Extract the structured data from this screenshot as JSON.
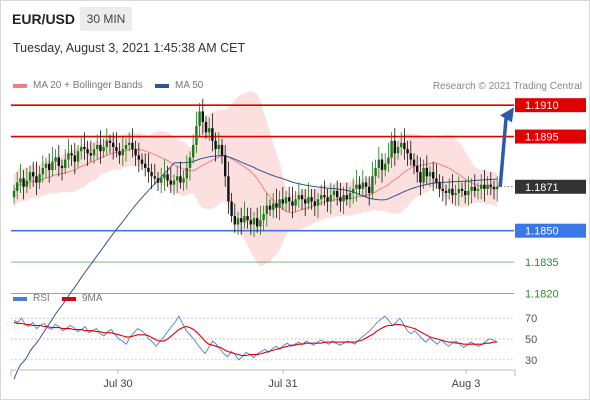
{
  "header": {
    "symbol": "EUR/USD",
    "timeframe": "30 MIN",
    "datetime": "Tuesday, August 3, 2021 1:45:38 AM CET",
    "credit": "Research © 2021 Trading Central"
  },
  "legend": {
    "ma20": "MA 20 + Bollinger Bands",
    "ma50": "MA 50",
    "rsi": "RSI",
    "ma9": "9MA"
  },
  "colors": {
    "resistance": "#e00000",
    "support": "#3b78e7",
    "target": "#2e8b2e",
    "current": "#333333",
    "bull": "#1a7a1a",
    "bear": "#111111",
    "band": "#fcd9d9",
    "ma20": "#f08080",
    "ma50": "#2f5496",
    "rsi": "#4a7fd4",
    "ma9": "#e00000",
    "arrow": "#2f5aa8"
  },
  "chart_data": {
    "type": "candlestick",
    "price_ylim": [
      1.1825,
      1.1912
    ],
    "x_ticks": [
      "Jul 30",
      "Jul 31",
      "Aug 3"
    ],
    "current_price": "1.1871",
    "levels": [
      {
        "value": 1.191,
        "label": "1.1910",
        "kind": "resistance"
      },
      {
        "value": 1.1895,
        "label": "1.1895",
        "kind": "resistance"
      },
      {
        "value": 1.185,
        "label": "1.1850",
        "kind": "support"
      },
      {
        "value": 1.1835,
        "label": "1.1835",
        "kind": "target"
      },
      {
        "value": 1.182,
        "label": "1.1820",
        "kind": "target"
      }
    ],
    "closes": [
      1.1869,
      1.1873,
      1.1875,
      1.1871,
      1.1874,
      1.1878,
      1.1876,
      1.1873,
      1.1877,
      1.188,
      1.1882,
      1.1879,
      1.1883,
      1.1885,
      1.1881,
      1.188,
      1.1884,
      1.1887,
      1.1886,
      1.1883,
      1.1888,
      1.189,
      1.1889,
      1.1887,
      1.1886,
      1.1889,
      1.1891,
      1.1888,
      1.189,
      1.1893,
      1.1892,
      1.189,
      1.1888,
      1.1886,
      1.1889,
      1.1891,
      1.1892,
      1.1889,
      1.1886,
      1.1884,
      1.1882,
      1.188,
      1.1878,
      1.1876,
      1.1875,
      1.1873,
      1.1875,
      1.1877,
      1.1874,
      1.1872,
      1.1874,
      1.1876,
      1.1873,
      1.1875,
      1.188,
      1.1885,
      1.1891,
      1.19,
      1.1907,
      1.1902,
      1.1897,
      1.1899,
      1.1893,
      1.1889,
      1.1891,
      1.1886,
      1.1876,
      1.1864,
      1.1857,
      1.1853,
      1.1856,
      1.1854,
      1.1857,
      1.1855,
      1.1853,
      1.1856,
      1.1852,
      1.1855,
      1.1858,
      1.1862,
      1.186,
      1.1863,
      1.1861,
      1.1865,
      1.1863,
      1.1866,
      1.1864,
      1.1862,
      1.1865,
      1.1867,
      1.1865,
      1.1863,
      1.1866,
      1.1864,
      1.1862,
      1.1865,
      1.1867,
      1.1866,
      1.1864,
      1.1867,
      1.1869,
      1.1866,
      1.1864,
      1.1867,
      1.1865,
      1.1868,
      1.187,
      1.1872,
      1.187,
      1.1873,
      1.1871,
      1.1868,
      1.1876,
      1.188,
      1.1884,
      1.1879,
      1.1882,
      1.1885,
      1.1893,
      1.1887,
      1.189,
      1.1892,
      1.1889,
      1.1887,
      1.1884,
      1.1881,
      1.1878,
      1.1873,
      1.188,
      1.1876,
      1.1878,
      1.1875,
      1.1873,
      1.187,
      1.1869,
      1.1868,
      1.187,
      1.1867,
      1.1868,
      1.187,
      1.1869,
      1.1867,
      1.1869,
      1.1871,
      1.1869,
      1.187,
      1.1872,
      1.187,
      1.1872,
      1.1871,
      1.187,
      1.1871
    ],
    "rsi_yticks": [
      70,
      50,
      30
    ],
    "rsi": [
      68,
      66,
      70,
      64,
      62,
      66,
      60,
      63,
      65,
      61,
      59,
      64,
      62,
      58,
      60,
      63,
      61,
      57,
      59,
      62,
      56,
      58,
      60,
      55,
      53,
      57,
      59,
      54,
      50,
      48,
      45,
      52,
      56,
      60,
      58,
      55,
      50,
      47,
      43,
      48,
      52,
      57,
      62,
      66,
      72,
      65,
      58,
      54,
      50,
      45,
      40,
      36,
      42,
      48,
      45,
      40,
      36,
      33,
      38,
      35,
      30,
      33,
      37,
      35,
      32,
      36,
      38,
      40,
      37,
      41,
      43,
      40,
      44,
      46,
      43,
      45,
      47,
      45,
      48,
      46,
      44,
      47,
      49,
      47,
      45,
      48,
      46,
      44,
      46,
      48,
      47,
      45,
      49,
      52,
      55,
      58,
      62,
      66,
      69,
      72,
      68,
      63,
      66,
      70,
      64,
      58,
      55,
      58,
      54,
      50,
      47,
      51,
      48,
      45,
      49,
      46,
      43,
      46,
      48,
      45,
      42,
      44,
      47,
      45,
      43,
      45,
      48,
      50,
      49,
      47
    ],
    "ma9": [
      66,
      65,
      65,
      64,
      64,
      63,
      63,
      63,
      62,
      62,
      61,
      61,
      61,
      60,
      60,
      60,
      59,
      59,
      59,
      58,
      58,
      58,
      57,
      57,
      56,
      56,
      56,
      55,
      54,
      53,
      52,
      52,
      53,
      54,
      54,
      54,
      53,
      51,
      49,
      48,
      48,
      50,
      53,
      56,
      59,
      61,
      62,
      61,
      59,
      56,
      52,
      48,
      45,
      44,
      43,
      42,
      40,
      38,
      37,
      36,
      35,
      34,
      34,
      35,
      35,
      35,
      36,
      37,
      38,
      39,
      40,
      41,
      42,
      43,
      44,
      44,
      45,
      45,
      46,
      46,
      46,
      46,
      46,
      47,
      47,
      47,
      47,
      47,
      47,
      47,
      47,
      47,
      48,
      49,
      51,
      53,
      55,
      58,
      60,
      62,
      63,
      63,
      64,
      64,
      63,
      62,
      61,
      60,
      58,
      56,
      54,
      52,
      51,
      50,
      49,
      48,
      47,
      47,
      46,
      46,
      45,
      45,
      45,
      45,
      45,
      45,
      46,
      46,
      47,
      47
    ]
  }
}
